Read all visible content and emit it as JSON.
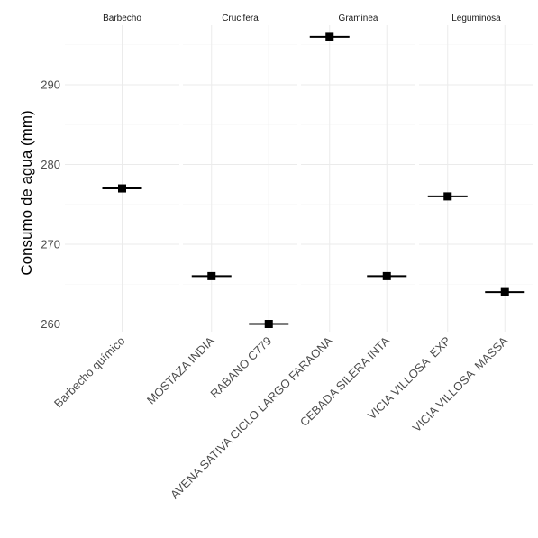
{
  "chart_data": {
    "type": "scatter",
    "title": "",
    "xlabel": "",
    "ylabel": "Consumo de agua (mm)",
    "ylim": [
      258,
      298
    ],
    "yticks": [
      260,
      270,
      280,
      290
    ],
    "grid": true,
    "point_shape": "square",
    "point_color": "#000000",
    "facets": [
      {
        "name": "Barbecho",
        "categories": [
          "Barbecho químico"
        ],
        "values": [
          277
        ]
      },
      {
        "name": "Crucifera",
        "categories": [
          "MOSTAZA INDIA",
          "RABANO C779"
        ],
        "values": [
          266,
          260
        ]
      },
      {
        "name": "Graminea",
        "categories": [
          "AVENA SATIVA CICLO LARGO FARAONA",
          "CEBADA SILERA INTA"
        ],
        "values": [
          296,
          266
        ]
      },
      {
        "name": "Leguminosa",
        "categories": [
          "VICIA VILLOSA  EXP",
          "VICIA VILLOSA  MASSA"
        ],
        "values": [
          276,
          264
        ]
      }
    ]
  }
}
